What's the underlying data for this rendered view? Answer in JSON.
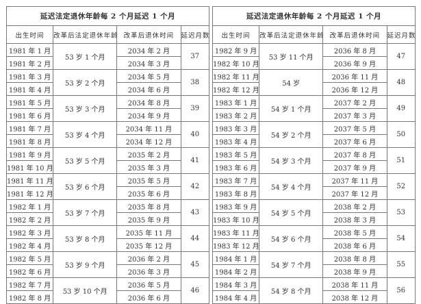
{
  "tables": [
    {
      "title": "延迟法定退休年龄每 2 个月延迟 1 个月",
      "headers": [
        "出生时间",
        "改革后法定退休年龄",
        "改革后退休时间",
        "延迟月数"
      ],
      "groups": [
        {
          "births": [
            "1981 年 1 月",
            "1981 年 2 月"
          ],
          "age": "53 岁 1 个月",
          "retire": [
            "2034 年 2 月",
            "2034 年 3 月"
          ],
          "delay": "37"
        },
        {
          "births": [
            "1981 年 3 月",
            "1981 年 4 月"
          ],
          "age": "53 岁 2 个月",
          "retire": [
            "2034 年 5 月",
            "2034 年 6 月"
          ],
          "delay": "38"
        },
        {
          "births": [
            "1981 年 5 月",
            "1981 年 6 月"
          ],
          "age": "53 岁 3 个月",
          "retire": [
            "2034 年 8 月",
            "2034 年 9 月"
          ],
          "delay": "39"
        },
        {
          "births": [
            "1981 年 7 月",
            "1981 年 8 月"
          ],
          "age": "53 岁 4 个月",
          "retire": [
            "2034 年 11 月",
            "2034 年 12 月"
          ],
          "delay": "40"
        },
        {
          "births": [
            "1981 年 9 月",
            "1981 年 10 月"
          ],
          "age": "53 岁 5 个月",
          "retire": [
            "2035 年 2 月",
            "2035 年 3 月"
          ],
          "delay": "41"
        },
        {
          "births": [
            "1981 年 11 月",
            "1981 年 12 月"
          ],
          "age": "53 岁 6 个月",
          "retire": [
            "2035 年 5 月",
            "2035 年 6 月"
          ],
          "delay": "42"
        },
        {
          "births": [
            "1982 年 1 月",
            "1982 年 2 月"
          ],
          "age": "53 岁 7 个月",
          "retire": [
            "2035 年 8 月",
            "2035 年 9 月"
          ],
          "delay": "43"
        },
        {
          "births": [
            "1982 年 3 月",
            "1982 年 4 月"
          ],
          "age": "53 岁 8 个月",
          "retire": [
            "2035 年 11 月",
            "2035 年 12 月"
          ],
          "delay": "44"
        },
        {
          "births": [
            "1982 年 5 月",
            "1982 年 6 月"
          ],
          "age": "53 岁 9 个月",
          "retire": [
            "2036 年 2 月",
            "2036 年 3 月"
          ],
          "delay": "45"
        },
        {
          "births": [
            "1982 年 7 月",
            "1982 年 8 月"
          ],
          "age": "53 岁 10 个月",
          "retire": [
            "2036 年 5 月",
            "2036 年 6 月"
          ],
          "delay": "46"
        }
      ]
    },
    {
      "title": "延迟法定退休年龄每 2 个月延迟 1 个月",
      "headers": [
        "出生时间",
        "改革后法定退休年龄",
        "改革后退休时间",
        "延迟月数"
      ],
      "groups": [
        {
          "births": [
            "1982 年 9 月",
            "1982 年 10 月"
          ],
          "age": "53 岁 11 个月",
          "retire": [
            "2036 年 8 月",
            "2036 年 9 月"
          ],
          "delay": "47"
        },
        {
          "births": [
            "1982 年 11 月",
            "1982 年 12 月"
          ],
          "age": "54 岁",
          "retire": [
            "2036 年 11 月",
            "2036 年 12 月"
          ],
          "delay": "48"
        },
        {
          "births": [
            "1983 年 1 月",
            "1983 年 2 月"
          ],
          "age": "54 岁 1 个月",
          "retire": [
            "2037 年 2 月",
            "2037 年 3 月"
          ],
          "delay": "49"
        },
        {
          "births": [
            "1983 年 3 月",
            "1983 年 4 月"
          ],
          "age": "54 岁 2 个月",
          "retire": [
            "2037 年 5 月",
            "2037 年 6 月"
          ],
          "delay": "50"
        },
        {
          "births": [
            "1983 年 5 月",
            "1983 年 6 月"
          ],
          "age": "54 岁 3 个月",
          "retire": [
            "2037 年 8 月",
            "2037 年 9 月"
          ],
          "delay": "51"
        },
        {
          "births": [
            "1983 年 7 月",
            "1983 年 8 月"
          ],
          "age": "54 岁 4 个月",
          "retire": [
            "2037 年 11 月",
            "2037 年 12 月"
          ],
          "delay": "52"
        },
        {
          "births": [
            "1983 年 9 月",
            "1983 年 10 月"
          ],
          "age": "54 岁 5 个月",
          "retire": [
            "2038 年 2 月",
            "2038 年 3 月"
          ],
          "delay": "53"
        },
        {
          "births": [
            "1983 年 11 月",
            "1983 年 12 月"
          ],
          "age": "54 岁 6 个月",
          "retire": [
            "2038 年 5 月",
            "2038 年 6 月"
          ],
          "delay": "54"
        },
        {
          "births": [
            "1984 年 1 月",
            "1984 年 2 月"
          ],
          "age": "54 岁 7 个月",
          "retire": [
            "2038 年 8 月",
            "2038 年 9 月"
          ],
          "delay": "55"
        },
        {
          "births": [
            "1984 年 3 月",
            "1984 年 4 月"
          ],
          "age": "54 岁 8 个月",
          "retire": [
            "2038 年 11 月",
            "2038 年 12 月"
          ],
          "delay": "56"
        }
      ]
    }
  ]
}
